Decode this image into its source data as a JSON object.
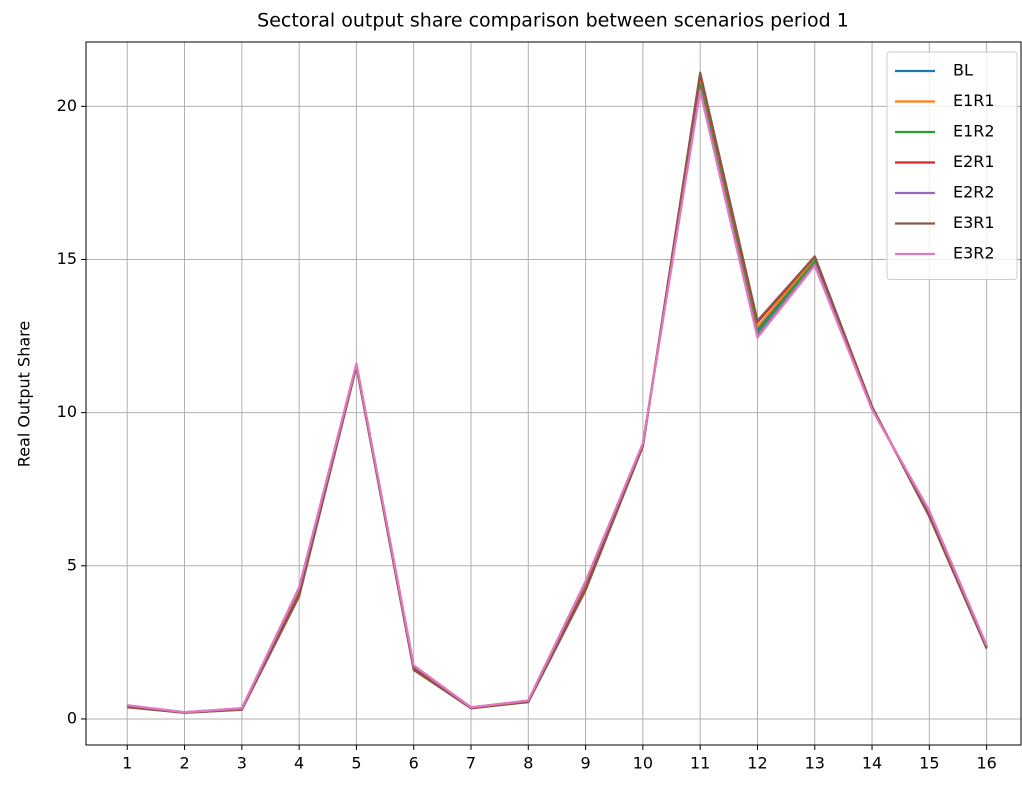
{
  "chart_data": {
    "type": "line",
    "title": "Sectoral output share comparison between scenarios period 1",
    "y_label": "Real Output Share",
    "x": [
      1,
      2,
      3,
      4,
      5,
      6,
      7,
      8,
      9,
      10,
      11,
      12,
      13,
      14,
      15,
      16
    ],
    "xlim": [
      0.28,
      16.6
    ],
    "xticks": [
      1,
      2,
      3,
      4,
      5,
      6,
      7,
      8,
      9,
      10,
      11,
      12,
      13,
      14,
      15,
      16
    ],
    "ylim": [
      -0.85,
      22.1
    ],
    "yticks": [
      0,
      5,
      10,
      15,
      20
    ],
    "grid": true,
    "legend": "upper right",
    "series": [
      {
        "name": "BL",
        "color": "#1f77b4",
        "values": [
          0.42,
          0.21,
          0.33,
          4.2,
          11.55,
          1.7,
          0.37,
          0.58,
          4.4,
          8.95,
          20.8,
          12.7,
          15.0,
          10.15,
          6.7,
          2.35
        ]
      },
      {
        "name": "E1R1",
        "color": "#ff7f0e",
        "values": [
          0.41,
          0.21,
          0.32,
          4.15,
          11.53,
          1.68,
          0.36,
          0.57,
          4.35,
          8.93,
          20.9,
          12.8,
          15.05,
          10.17,
          6.68,
          2.34
        ]
      },
      {
        "name": "E1R2",
        "color": "#2ca02c",
        "values": [
          0.43,
          0.22,
          0.34,
          4.25,
          11.57,
          1.72,
          0.37,
          0.59,
          4.45,
          8.97,
          20.7,
          12.6,
          14.95,
          10.13,
          6.73,
          2.37
        ]
      },
      {
        "name": "E2R1",
        "color": "#d62728",
        "values": [
          0.39,
          0.2,
          0.31,
          4.05,
          11.51,
          1.63,
          0.35,
          0.56,
          4.25,
          8.91,
          21.05,
          12.95,
          15.1,
          10.19,
          6.62,
          2.31
        ]
      },
      {
        "name": "E2R2",
        "color": "#9467bd",
        "values": [
          0.44,
          0.22,
          0.35,
          4.28,
          11.59,
          1.74,
          0.38,
          0.6,
          4.48,
          8.99,
          20.55,
          12.5,
          14.85,
          10.11,
          6.78,
          2.39
        ]
      },
      {
        "name": "E3R1",
        "color": "#8c564b",
        "values": [
          0.38,
          0.2,
          0.3,
          4.0,
          11.5,
          1.6,
          0.35,
          0.55,
          4.2,
          8.9,
          21.1,
          13.0,
          15.1,
          10.2,
          6.6,
          2.3
        ]
      },
      {
        "name": "E3R2",
        "color": "#e377c2",
        "values": [
          0.45,
          0.22,
          0.35,
          4.3,
          11.6,
          1.75,
          0.38,
          0.6,
          4.5,
          9.0,
          20.5,
          12.45,
          14.8,
          10.1,
          6.8,
          2.4
        ]
      }
    ]
  }
}
